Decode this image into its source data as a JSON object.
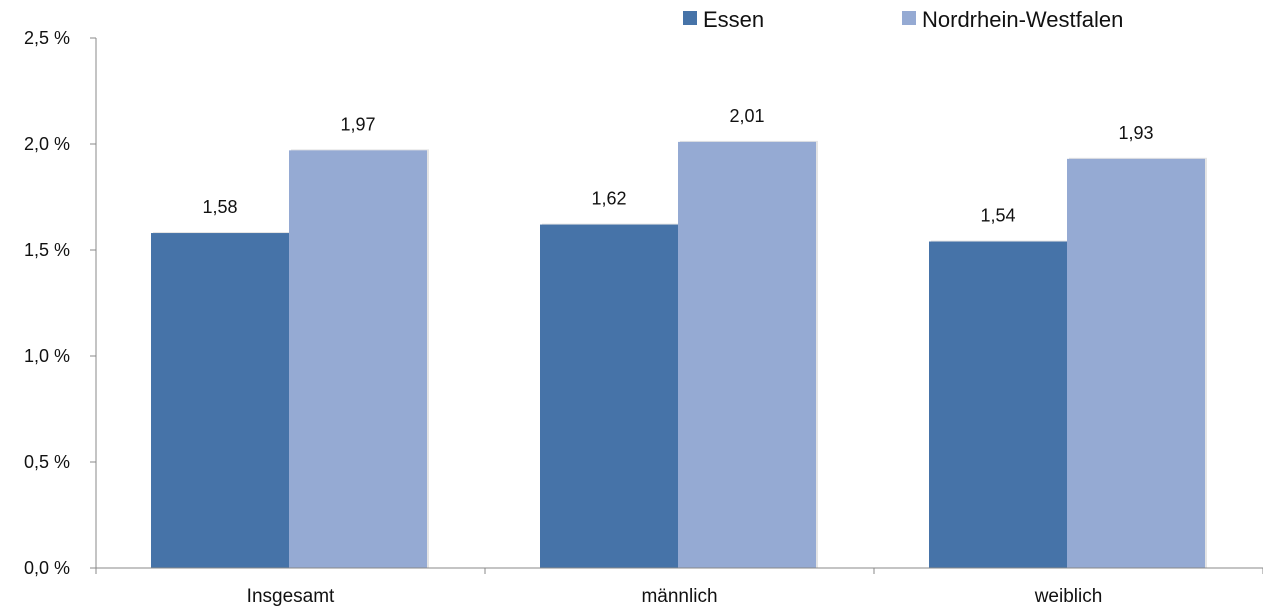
{
  "chart_data": {
    "type": "bar",
    "categories": [
      "Insgesamt",
      "männlich",
      "weiblich"
    ],
    "series": [
      {
        "name": "Essen",
        "values": [
          1.58,
          1.62,
          1.54
        ],
        "color": "#4673a8"
      },
      {
        "name": "Nordrhein-Westfalen",
        "values": [
          1.97,
          2.01,
          1.93
        ],
        "color": "#95aad3"
      }
    ],
    "value_labels": [
      [
        "1,58",
        "1,62",
        "1,54"
      ],
      [
        "1,97",
        "2,01",
        "1,93"
      ]
    ],
    "ylim": [
      0,
      2.5
    ],
    "yticks": [
      0,
      0.5,
      1.0,
      1.5,
      2.0,
      2.5
    ],
    "ytick_labels": [
      "0,0 %",
      "0,5 %",
      "1,0 %",
      "1,5 %",
      "2,0 %",
      "2,5 %"
    ],
    "legend_position": "top-right",
    "grid": false
  }
}
